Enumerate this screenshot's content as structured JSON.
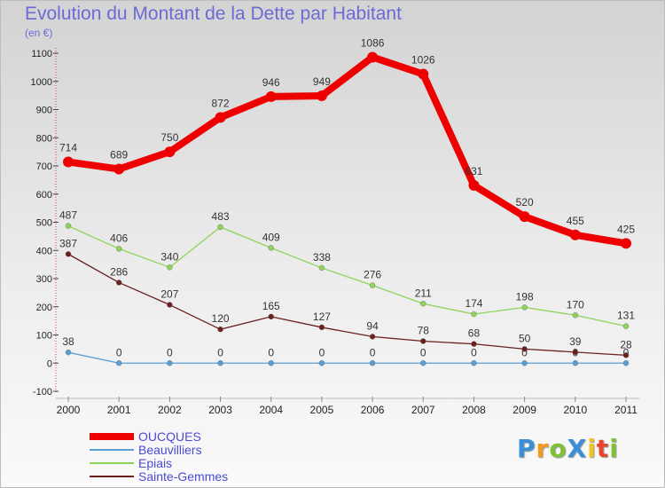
{
  "header": {
    "title": "Evolution du Montant de la Dette par Habitant",
    "subtitle": "(en €)"
  },
  "logo": {
    "text": "ProXiti",
    "letters": [
      {
        "ch": "P",
        "color": "#3b8fd6"
      },
      {
        "ch": "r",
        "color": "#f29a1f"
      },
      {
        "ch": "o",
        "color": "#7fbf3a"
      },
      {
        "ch": "X",
        "color": "#3b8fd6"
      },
      {
        "ch": "i",
        "color": "#f2c21f"
      },
      {
        "ch": "t",
        "color": "#e8452b"
      },
      {
        "ch": "i",
        "color": "#7fbf3a"
      }
    ]
  },
  "chart_data": {
    "type": "line",
    "title": "Evolution du Montant de la Dette par Habitant",
    "subtitle": "(en €)",
    "x": [
      "2000",
      "2001",
      "2002",
      "2003",
      "2004",
      "2005",
      "2006",
      "2007",
      "2008",
      "2009",
      "2010",
      "2011"
    ],
    "ylim": [
      -100,
      1100
    ],
    "yticks": [
      "-100",
      "0",
      "100",
      "200",
      "300",
      "400",
      "500",
      "600",
      "700",
      "800",
      "900",
      "1000",
      "1100"
    ],
    "grid": false,
    "legend_position": "bottom-left",
    "series": [
      {
        "name": "OUCQUES",
        "color": "#ee0000",
        "values": [
          714,
          689,
          750,
          872,
          946,
          949,
          1086,
          1026,
          631,
          520,
          455,
          425
        ],
        "labels": [
          "714",
          "689",
          "750",
          "872",
          "946",
          "949",
          "1086",
          "1026",
          "631",
          "520",
          "455",
          "425"
        ]
      },
      {
        "name": "Beauvilliers",
        "color": "#5a9fd4",
        "values": [
          38,
          0,
          0,
          0,
          0,
          0,
          0,
          0,
          0,
          0,
          0,
          0
        ],
        "labels": [
          "38",
          "0",
          "0",
          "0",
          "0",
          "0",
          "0",
          "0",
          "0",
          "0",
          "0",
          "0"
        ]
      },
      {
        "name": "Epiais",
        "color": "#8fd45a",
        "values": [
          487,
          406,
          340,
          483,
          409,
          338,
          276,
          211,
          174,
          198,
          170,
          131
        ],
        "labels": [
          "487",
          "406",
          "340",
          "483",
          "409",
          "338",
          "276",
          "211",
          "174",
          "198",
          "170",
          "131"
        ]
      },
      {
        "name": "Sainte-Gemmes",
        "color": "#6b2020",
        "values": [
          387,
          286,
          207,
          120,
          165,
          127,
          94,
          78,
          68,
          50,
          39,
          28
        ],
        "labels": [
          "387",
          "286",
          "207",
          "120",
          "165",
          "127",
          "94",
          "78",
          "68",
          "50",
          "39",
          "28"
        ]
      }
    ]
  }
}
